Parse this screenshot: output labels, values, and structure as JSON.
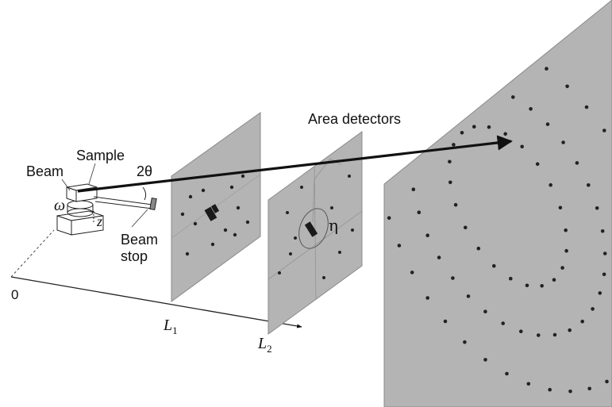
{
  "labels": {
    "area_detectors": "Area detectors",
    "sample": "Sample",
    "beam": "Beam",
    "two_theta": "2θ",
    "omega": "ω",
    "z": "z",
    "beam_stop_line1": "Beam",
    "beam_stop_line2": "stop",
    "origin": "0",
    "l1": "L",
    "l1_sub": "1",
    "l2": "L",
    "l2_sub": "2",
    "eta": "η"
  },
  "colors": {
    "panel_fill": "#b4b4b4",
    "panel_edge": "#8a8a8a",
    "spot": "#222222",
    "line": "#111111"
  }
}
